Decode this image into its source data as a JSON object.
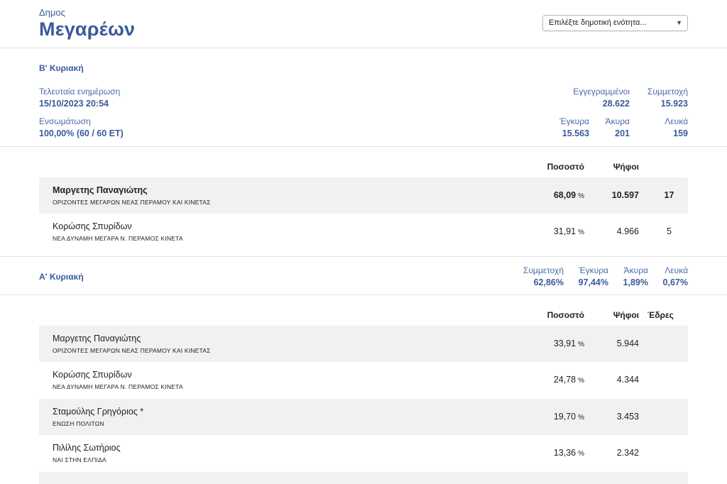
{
  "header": {
    "municipality_type": "Δημος",
    "municipality_name": "Μεγαρέων",
    "unit_select_value": "Επιλέξτε δημοτική ενότητα...",
    "unit_select_arrow_icon": "chevron-down-icon"
  },
  "round_b": {
    "title": "Β' Κυριακή",
    "last_update_label": "Τελευταία ενημέρωση",
    "last_update_value": "15/10/2023 20:54",
    "integration_label": "Ενσωμάτωση",
    "integration_value": "100,00% (60 / 60 ΕΤ)",
    "registered_label": "Εγγεγραμμένοι",
    "registered_value": "28.622",
    "turnout_label": "Συμμετοχή",
    "turnout_value": "15.923",
    "valid_label": "Έγκυρα",
    "valid_value": "15.563",
    "invalid_label": "Άκυρα",
    "invalid_value": "201",
    "blank_label": "Λευκά",
    "blank_value": "159",
    "columns": {
      "percent": "Ποσοστό",
      "votes": "Ψήφοι"
    },
    "candidates": [
      {
        "name": "Μαργετης Παναγιώτης",
        "party": "ΟΡΙΖΟΝΤΕΣ ΜΕΓΑΡΩΝ ΝΕΑΣ ΠΕΡΑΜΟΥ ΚΑΙ ΚΙΝΕΤΑΣ",
        "percent": "68,09",
        "percent_unit": "%",
        "votes": "10.597",
        "seats": "17"
      },
      {
        "name": "Κορώσης Σπυρίδων",
        "party": "ΝΕΑ ΔΥΝΑΜΗ ΜΕΓΑΡΑ Ν. ΠΕΡΑΜΟΣ ΚΙΝΕΤΑ",
        "percent": "31,91",
        "percent_unit": "%",
        "votes": "4.966",
        "seats": "5"
      }
    ]
  },
  "round_a": {
    "title": "Α' Κυριακή",
    "turnout_label": "Συμμετοχή",
    "turnout_value": "62,86%",
    "valid_label": "Έγκυρα",
    "valid_value": "97,44%",
    "invalid_label": "Άκυρα",
    "invalid_value": "1,89%",
    "blank_label": "Λευκά",
    "blank_value": "0,67%",
    "columns": {
      "percent": "Ποσοστό",
      "votes": "Ψήφοι",
      "seats": "Έδρες"
    },
    "candidates": [
      {
        "name": "Μαργετης Παναγιώτης",
        "party": "ΟΡΙΖΟΝΤΕΣ ΜΕΓΑΡΩΝ ΝΕΑΣ ΠΕΡΑΜΟΥ ΚΑΙ ΚΙΝΕΤΑΣ",
        "percent": "33,91",
        "percent_unit": "%",
        "votes": "5.944"
      },
      {
        "name": "Κορώσης Σπυρίδων",
        "party": "ΝΕΑ ΔΥΝΑΜΗ ΜΕΓΑΡΑ Ν. ΠΕΡΑΜΟΣ ΚΙΝΕΤΑ",
        "percent": "24,78",
        "percent_unit": "%",
        "votes": "4.344"
      },
      {
        "name": "Σταμούλης Γρηγόριος *",
        "party": "ΕΝΩΣΗ ΠΟΛΙΤΩΝ",
        "percent": "19,70",
        "percent_unit": "%",
        "votes": "3.453"
      },
      {
        "name": "Πιλίλης Σωτήριος",
        "party": "ΝΑΙ ΣΤΗΝ ΕΛΠΙΔΑ",
        "percent": "13,36",
        "percent_unit": "%",
        "votes": "2.342"
      }
    ]
  },
  "colors": {
    "accent": "#3a5a9b",
    "row_shade": "#f0f1f3",
    "divider": "#e3e3e3"
  }
}
